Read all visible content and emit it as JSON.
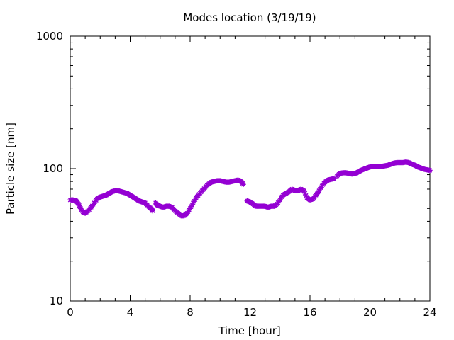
{
  "chart_data": {
    "type": "scatter",
    "title": "Modes location (3/19/19)",
    "xlabel": "Time [hour]",
    "ylabel": "Particle size [nm]",
    "xlim": [
      0,
      24
    ],
    "ylim": [
      10,
      1000
    ],
    "yscale": "log",
    "grid": false,
    "legend": "none",
    "color": "#9400d3",
    "x_ticks": [
      0,
      4,
      8,
      12,
      16,
      20,
      24
    ],
    "x_tick_labels": [
      "0",
      "4",
      "8",
      "12",
      "16",
      "20",
      "24"
    ],
    "y_ticks": [
      10,
      100,
      1000
    ],
    "y_tick_labels": [
      "10",
      "100",
      "1000"
    ],
    "segments": [
      {
        "points": [
          [
            0.0,
            58
          ],
          [
            0.25,
            58
          ],
          [
            0.4,
            57
          ],
          [
            0.55,
            54
          ],
          [
            0.7,
            50
          ],
          [
            0.85,
            47
          ],
          [
            1.0,
            46
          ],
          [
            1.2,
            48
          ],
          [
            1.4,
            51
          ],
          [
            1.6,
            55
          ],
          [
            1.8,
            59
          ],
          [
            2.0,
            61
          ],
          [
            2.2,
            62
          ],
          [
            2.4,
            63
          ],
          [
            2.6,
            65
          ],
          [
            2.8,
            67
          ],
          [
            3.0,
            68
          ],
          [
            3.2,
            68
          ],
          [
            3.4,
            67
          ],
          [
            3.6,
            66
          ],
          [
            3.8,
            65
          ],
          [
            4.0,
            63
          ],
          [
            4.2,
            61
          ],
          [
            4.4,
            59
          ],
          [
            4.6,
            57
          ],
          [
            4.8,
            56
          ],
          [
            5.0,
            55
          ],
          [
            5.2,
            52
          ],
          [
            5.4,
            50
          ],
          [
            5.5,
            48
          ]
        ]
      },
      {
        "points": [
          [
            5.7,
            55
          ],
          [
            5.8,
            53
          ],
          [
            6.0,
            52
          ],
          [
            6.2,
            51
          ],
          [
            6.4,
            52
          ],
          [
            6.6,
            52
          ],
          [
            6.8,
            51
          ],
          [
            7.0,
            48
          ],
          [
            7.2,
            46
          ],
          [
            7.4,
            44
          ],
          [
            7.6,
            44
          ],
          [
            7.8,
            46
          ],
          [
            8.0,
            50
          ],
          [
            8.2,
            55
          ],
          [
            8.4,
            60
          ],
          [
            8.6,
            64
          ],
          [
            8.8,
            68
          ],
          [
            9.0,
            72
          ],
          [
            9.2,
            76
          ],
          [
            9.4,
            79
          ],
          [
            9.6,
            80
          ],
          [
            9.8,
            81
          ],
          [
            10.0,
            81
          ],
          [
            10.2,
            80
          ],
          [
            10.4,
            79
          ],
          [
            10.6,
            79
          ],
          [
            10.8,
            80
          ],
          [
            11.0,
            81
          ],
          [
            11.2,
            82
          ],
          [
            11.4,
            80
          ],
          [
            11.55,
            76
          ]
        ]
      },
      {
        "points": [
          [
            11.8,
            57
          ],
          [
            12.0,
            56
          ],
          [
            12.2,
            54
          ],
          [
            12.4,
            52
          ],
          [
            12.6,
            52
          ],
          [
            12.8,
            52
          ],
          [
            13.0,
            52
          ],
          [
            13.2,
            51
          ],
          [
            13.4,
            52
          ],
          [
            13.6,
            52
          ],
          [
            13.8,
            54
          ],
          [
            14.0,
            58
          ],
          [
            14.2,
            63
          ],
          [
            14.4,
            65
          ],
          [
            14.6,
            67
          ],
          [
            14.8,
            70
          ],
          [
            15.0,
            68
          ],
          [
            15.2,
            68
          ],
          [
            15.4,
            70
          ],
          [
            15.6,
            68
          ],
          [
            15.8,
            60
          ],
          [
            16.0,
            58
          ],
          [
            16.2,
            59
          ],
          [
            16.4,
            63
          ],
          [
            16.6,
            68
          ],
          [
            16.8,
            74
          ],
          [
            17.0,
            79
          ],
          [
            17.2,
            82
          ],
          [
            17.4,
            83
          ],
          [
            17.6,
            84
          ]
        ]
      },
      {
        "points": [
          [
            17.8,
            88
          ],
          [
            18.0,
            92
          ],
          [
            18.2,
            93
          ],
          [
            18.4,
            93
          ],
          [
            18.6,
            92
          ],
          [
            18.8,
            91
          ],
          [
            19.0,
            92
          ],
          [
            19.2,
            94
          ],
          [
            19.4,
            97
          ],
          [
            19.6,
            99
          ],
          [
            19.8,
            101
          ],
          [
            20.0,
            103
          ],
          [
            20.2,
            104
          ],
          [
            20.4,
            104
          ],
          [
            20.6,
            104
          ],
          [
            20.8,
            104
          ],
          [
            21.0,
            105
          ],
          [
            21.2,
            106
          ],
          [
            21.4,
            108
          ],
          [
            21.6,
            110
          ],
          [
            21.8,
            111
          ],
          [
            22.0,
            111
          ],
          [
            22.2,
            111
          ],
          [
            22.4,
            112
          ],
          [
            22.6,
            111
          ],
          [
            22.8,
            108
          ],
          [
            23.0,
            106
          ],
          [
            23.2,
            103
          ],
          [
            23.4,
            101
          ],
          [
            23.6,
            99
          ],
          [
            23.8,
            98
          ],
          [
            24.0,
            97
          ]
        ]
      }
    ]
  }
}
